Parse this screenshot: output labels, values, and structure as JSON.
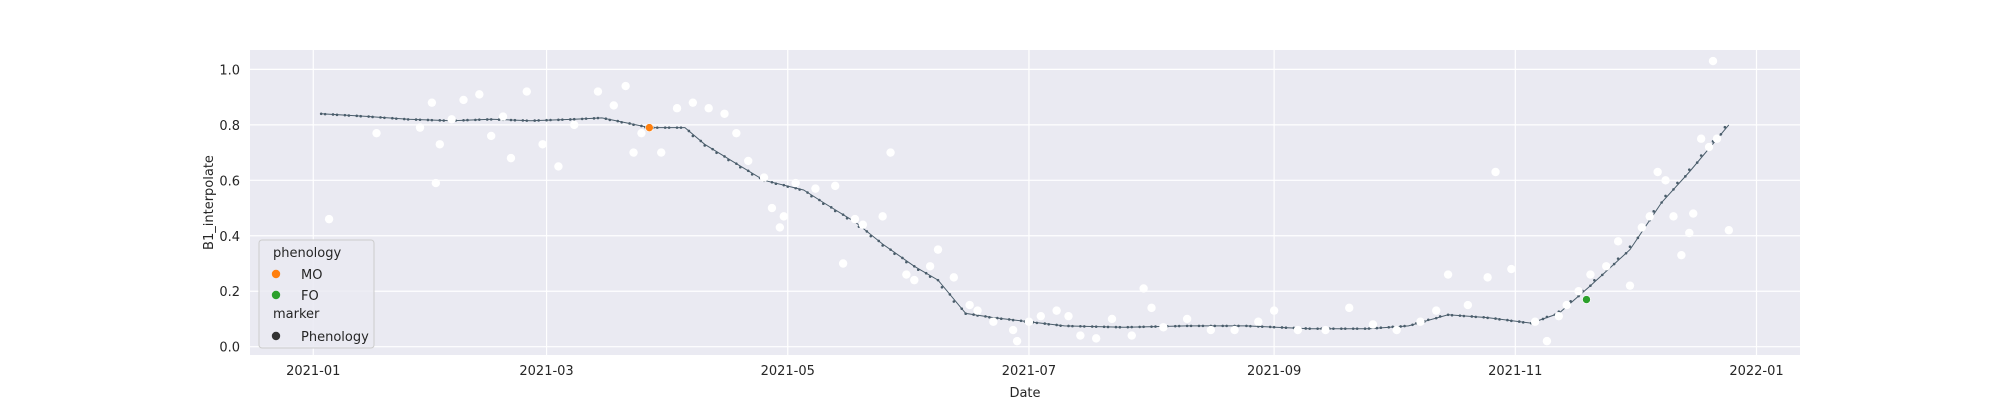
{
  "chart_data": {
    "type": "scatter",
    "title": "",
    "xlabel": "Date",
    "ylabel": "B1_interpolate",
    "x_is_date": true,
    "xlim": [
      "2020-12-16",
      "2022-01-12"
    ],
    "ylim": [
      -0.03,
      1.07
    ],
    "x_ticks": [
      "2021-01",
      "2021-03",
      "2021-05",
      "2021-07",
      "2021-09",
      "2021-11",
      "2022-01"
    ],
    "y_ticks": [
      "0.0",
      "0.2",
      "0.4",
      "0.6",
      "0.8",
      "1.0"
    ],
    "grid": true,
    "background": "#eaeaf2",
    "legend": {
      "placement": "lower-left",
      "title": "phenology",
      "entries": [
        {
          "label": "MO",
          "color": "#ff7f0e",
          "shape": "circle"
        },
        {
          "label": "FO",
          "color": "#2ca02c",
          "shape": "circle"
        }
      ],
      "marker_title": "marker",
      "marker_entries": [
        {
          "label": "Phenology",
          "color": "#333333",
          "shape": "circle"
        }
      ]
    },
    "series": [
      {
        "kind": "smoothed-line",
        "color": "#4a5d6b",
        "points": [
          [
            "2021-01-03",
            0.84
          ],
          [
            "2021-01-15",
            0.83
          ],
          [
            "2021-01-25",
            0.82
          ],
          [
            "2021-02-05",
            0.815
          ],
          [
            "2021-02-15",
            0.82
          ],
          [
            "2021-02-25",
            0.815
          ],
          [
            "2021-03-08",
            0.82
          ],
          [
            "2021-03-15",
            0.825
          ],
          [
            "2021-03-22",
            0.805
          ],
          [
            "2021-03-27",
            0.79
          ],
          [
            "2021-04-05",
            0.79
          ],
          [
            "2021-04-10",
            0.73
          ],
          [
            "2021-04-18",
            0.66
          ],
          [
            "2021-04-25",
            0.6
          ],
          [
            "2021-05-05",
            0.565
          ],
          [
            "2021-05-10",
            0.52
          ],
          [
            "2021-05-18",
            0.45
          ],
          [
            "2021-05-25",
            0.37
          ],
          [
            "2021-06-02",
            0.29
          ],
          [
            "2021-06-08",
            0.24
          ],
          [
            "2021-06-15",
            0.12
          ],
          [
            "2021-06-22",
            0.105
          ],
          [
            "2021-07-01",
            0.09
          ],
          [
            "2021-07-10",
            0.075
          ],
          [
            "2021-07-25",
            0.07
          ],
          [
            "2021-08-10",
            0.075
          ],
          [
            "2021-08-25",
            0.075
          ],
          [
            "2021-09-10",
            0.065
          ],
          [
            "2021-09-25",
            0.065
          ],
          [
            "2021-10-05",
            0.075
          ],
          [
            "2021-10-15",
            0.115
          ],
          [
            "2021-10-25",
            0.105
          ],
          [
            "2021-11-05",
            0.085
          ],
          [
            "2021-11-12",
            0.12
          ],
          [
            "2021-11-20",
            0.22
          ],
          [
            "2021-11-30",
            0.35
          ],
          [
            "2021-12-08",
            0.52
          ],
          [
            "2021-12-15",
            0.63
          ],
          [
            "2021-12-25",
            0.8
          ]
        ]
      },
      {
        "kind": "observations",
        "color": "#ffffff",
        "points": [
          [
            "2021-01-05",
            0.46
          ],
          [
            "2021-01-17",
            0.77
          ],
          [
            "2021-01-28",
            0.79
          ],
          [
            "2021-01-31",
            0.88
          ],
          [
            "2021-02-01",
            0.59
          ],
          [
            "2021-02-02",
            0.73
          ],
          [
            "2021-02-05",
            0.82
          ],
          [
            "2021-02-08",
            0.89
          ],
          [
            "2021-02-12",
            0.91
          ],
          [
            "2021-02-15",
            0.76
          ],
          [
            "2021-02-18",
            0.83
          ],
          [
            "2021-02-20",
            0.68
          ],
          [
            "2021-02-24",
            0.92
          ],
          [
            "2021-02-28",
            0.73
          ],
          [
            "2021-03-04",
            0.65
          ],
          [
            "2021-03-08",
            0.8
          ],
          [
            "2021-03-14",
            0.92
          ],
          [
            "2021-03-18",
            0.87
          ],
          [
            "2021-03-21",
            0.94
          ],
          [
            "2021-03-23",
            0.7
          ],
          [
            "2021-03-25",
            0.77
          ],
          [
            "2021-03-30",
            0.7
          ],
          [
            "2021-04-03",
            0.86
          ],
          [
            "2021-04-07",
            0.88
          ],
          [
            "2021-04-11",
            0.86
          ],
          [
            "2021-04-15",
            0.84
          ],
          [
            "2021-04-18",
            0.77
          ],
          [
            "2021-04-21",
            0.67
          ],
          [
            "2021-04-25",
            0.61
          ],
          [
            "2021-04-27",
            0.5
          ],
          [
            "2021-04-29",
            0.43
          ],
          [
            "2021-04-30",
            0.47
          ],
          [
            "2021-05-03",
            0.59
          ],
          [
            "2021-05-08",
            0.57
          ],
          [
            "2021-05-13",
            0.58
          ],
          [
            "2021-05-15",
            0.3
          ],
          [
            "2021-05-18",
            0.46
          ],
          [
            "2021-05-20",
            0.44
          ],
          [
            "2021-05-25",
            0.47
          ],
          [
            "2021-05-27",
            0.7
          ],
          [
            "2021-05-31",
            0.26
          ],
          [
            "2021-06-02",
            0.24
          ],
          [
            "2021-06-06",
            0.29
          ],
          [
            "2021-06-08",
            0.35
          ],
          [
            "2021-06-12",
            0.25
          ],
          [
            "2021-06-16",
            0.15
          ],
          [
            "2021-06-18",
            0.13
          ],
          [
            "2021-06-22",
            0.09
          ],
          [
            "2021-06-27",
            0.06
          ],
          [
            "2021-06-28",
            0.02
          ],
          [
            "2021-07-01",
            0.09
          ],
          [
            "2021-07-04",
            0.11
          ],
          [
            "2021-07-08",
            0.13
          ],
          [
            "2021-07-11",
            0.11
          ],
          [
            "2021-07-14",
            0.04
          ],
          [
            "2021-07-18",
            0.03
          ],
          [
            "2021-07-22",
            0.1
          ],
          [
            "2021-07-27",
            0.04
          ],
          [
            "2021-07-30",
            0.21
          ],
          [
            "2021-08-01",
            0.14
          ],
          [
            "2021-08-04",
            0.07
          ],
          [
            "2021-08-10",
            0.1
          ],
          [
            "2021-08-16",
            0.06
          ],
          [
            "2021-08-22",
            0.06
          ],
          [
            "2021-08-28",
            0.09
          ],
          [
            "2021-09-01",
            0.13
          ],
          [
            "2021-09-07",
            0.06
          ],
          [
            "2021-09-14",
            0.06
          ],
          [
            "2021-09-20",
            0.14
          ],
          [
            "2021-09-26",
            0.08
          ],
          [
            "2021-10-02",
            0.06
          ],
          [
            "2021-10-08",
            0.09
          ],
          [
            "2021-10-12",
            0.13
          ],
          [
            "2021-10-15",
            0.26
          ],
          [
            "2021-10-20",
            0.15
          ],
          [
            "2021-10-25",
            0.25
          ],
          [
            "2021-10-27",
            0.63
          ],
          [
            "2021-10-31",
            0.28
          ],
          [
            "2021-11-06",
            0.09
          ],
          [
            "2021-11-09",
            0.02
          ],
          [
            "2021-11-12",
            0.11
          ],
          [
            "2021-11-14",
            0.15
          ],
          [
            "2021-11-17",
            0.2
          ],
          [
            "2021-11-20",
            0.26
          ],
          [
            "2021-11-24",
            0.29
          ],
          [
            "2021-11-27",
            0.38
          ],
          [
            "2021-11-30",
            0.22
          ],
          [
            "2021-12-03",
            0.43
          ],
          [
            "2021-12-05",
            0.47
          ],
          [
            "2021-12-07",
            0.63
          ],
          [
            "2021-12-09",
            0.6
          ],
          [
            "2021-12-11",
            0.47
          ],
          [
            "2021-12-13",
            0.33
          ],
          [
            "2021-12-15",
            0.41
          ],
          [
            "2021-12-16",
            0.48
          ],
          [
            "2021-12-18",
            0.75
          ],
          [
            "2021-12-20",
            0.72
          ],
          [
            "2021-12-21",
            1.03
          ],
          [
            "2021-12-22",
            0.75
          ],
          [
            "2021-12-25",
            0.42
          ]
        ]
      },
      {
        "kind": "phenology",
        "name": "MO",
        "color": "#ff7f0e",
        "points": [
          [
            "2021-03-27",
            0.79
          ]
        ]
      },
      {
        "kind": "phenology",
        "name": "FO",
        "color": "#2ca02c",
        "points": [
          [
            "2021-11-19",
            0.17
          ]
        ]
      }
    ]
  }
}
